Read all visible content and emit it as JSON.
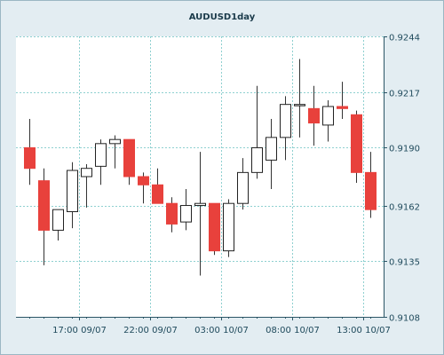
{
  "chart_data": {
    "type": "candlestick",
    "title": "AUDUSD1day",
    "ylim": [
      0.9108,
      0.9244
    ],
    "y_ticks": [
      "0.9244",
      "0.9217",
      "0.9190",
      "0.9162",
      "0.9135",
      "0.9108"
    ],
    "x_ticks": [
      {
        "label": "17:00 09/07",
        "after_candle": 4
      },
      {
        "label": "22:00 09/07",
        "after_candle": 9
      },
      {
        "label": "03:00 10/07",
        "after_candle": 14
      },
      {
        "label": "08:00 10/07",
        "after_candle": 19
      },
      {
        "label": "13:00 10/07",
        "after_candle": 24
      }
    ],
    "grid": true,
    "colors": {
      "bull_body": "#ffffff",
      "bear_body": "#e8413c",
      "wick": "#333333",
      "plot_bg": "#ffffff",
      "panel_bg": "#e3edf2",
      "grid": "#8fd0d0"
    },
    "candles": [
      {
        "o": 0.919,
        "h": 0.9204,
        "l": 0.9172,
        "c": 0.918
      },
      {
        "o": 0.9174,
        "h": 0.918,
        "l": 0.9133,
        "c": 0.915
      },
      {
        "o": 0.915,
        "h": 0.916,
        "l": 0.9145,
        "c": 0.916
      },
      {
        "o": 0.9159,
        "h": 0.9183,
        "l": 0.9151,
        "c": 0.9179
      },
      {
        "o": 0.9176,
        "h": 0.9182,
        "l": 0.9161,
        "c": 0.918
      },
      {
        "o": 0.9181,
        "h": 0.9194,
        "l": 0.9172,
        "c": 0.9192
      },
      {
        "o": 0.9192,
        "h": 0.9196,
        "l": 0.918,
        "c": 0.9194
      },
      {
        "o": 0.9194,
        "h": 0.9194,
        "l": 0.9172,
        "c": 0.9176
      },
      {
        "o": 0.9176,
        "h": 0.9178,
        "l": 0.9163,
        "c": 0.9172
      },
      {
        "o": 0.9172,
        "h": 0.918,
        "l": 0.9163,
        "c": 0.9163
      },
      {
        "o": 0.9163,
        "h": 0.9166,
        "l": 0.9149,
        "c": 0.9153
      },
      {
        "o": 0.9154,
        "h": 0.917,
        "l": 0.915,
        "c": 0.9162
      },
      {
        "o": 0.9162,
        "h": 0.9188,
        "l": 0.9128,
        "c": 0.9163
      },
      {
        "o": 0.9163,
        "h": 0.9163,
        "l": 0.9138,
        "c": 0.914
      },
      {
        "o": 0.914,
        "h": 0.9165,
        "l": 0.9137,
        "c": 0.9163
      },
      {
        "o": 0.9163,
        "h": 0.9185,
        "l": 0.916,
        "c": 0.9178
      },
      {
        "o": 0.9178,
        "h": 0.922,
        "l": 0.9175,
        "c": 0.919
      },
      {
        "o": 0.9184,
        "h": 0.9204,
        "l": 0.917,
        "c": 0.9195
      },
      {
        "o": 0.9195,
        "h": 0.9215,
        "l": 0.9184,
        "c": 0.9211
      },
      {
        "o": 0.9211,
        "h": 0.9233,
        "l": 0.9195,
        "c": 0.9211
      },
      {
        "o": 0.9209,
        "h": 0.922,
        "l": 0.9191,
        "c": 0.9202
      },
      {
        "o": 0.9201,
        "h": 0.9213,
        "l": 0.9193,
        "c": 0.921
      },
      {
        "o": 0.921,
        "h": 0.9222,
        "l": 0.9204,
        "c": 0.9209
      },
      {
        "o": 0.9206,
        "h": 0.9208,
        "l": 0.9173,
        "c": 0.9178
      },
      {
        "o": 0.9178,
        "h": 0.9188,
        "l": 0.9156,
        "c": 0.916
      }
    ]
  }
}
